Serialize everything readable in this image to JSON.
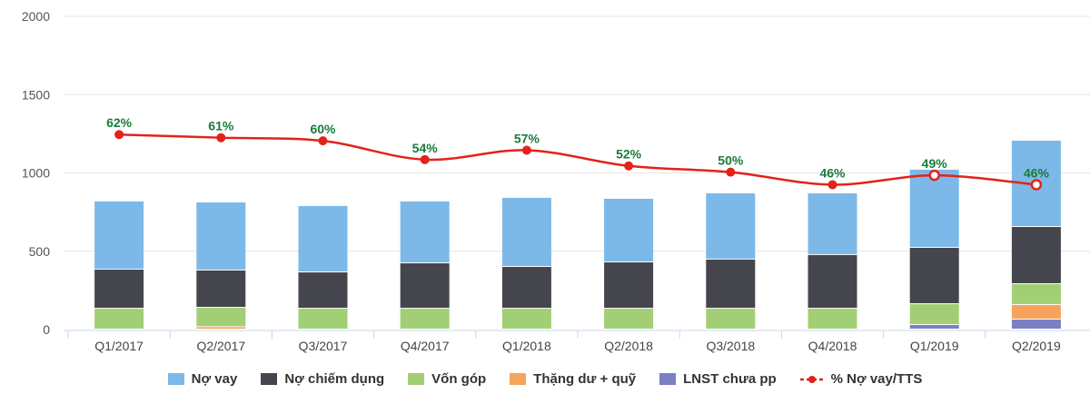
{
  "chart_data": {
    "type": "bar",
    "stacked": true,
    "categories": [
      "Q1/2017",
      "Q2/2017",
      "Q3/2017",
      "Q4/2017",
      "Q1/2018",
      "Q2/2018",
      "Q3/2018",
      "Q4/2018",
      "Q1/2019",
      "Q2/2019"
    ],
    "ylim": [
      0,
      2000
    ],
    "yticks": [
      "0",
      "500",
      "1000",
      "1500",
      "2000"
    ],
    "grid": true,
    "legend_position": "bottom",
    "series": [
      {
        "name": "LNST chưa pp",
        "color": "#7b7fc4",
        "values": [
          0,
          0,
          0,
          0,
          0,
          0,
          0,
          0,
          29,
          64
        ]
      },
      {
        "name": "Thặng dư + quỹ",
        "color": "#f7a35c",
        "values": [
          0,
          15,
          0,
          0,
          0,
          0,
          0,
          0,
          0,
          93
        ]
      },
      {
        "name": "Vốn góp",
        "color": "#a2cf75",
        "values": [
          133,
          124,
          133,
          133,
          133,
          133,
          133,
          133,
          133,
          133
        ]
      },
      {
        "name": "Nợ chiếm dụng",
        "color": "#45464d",
        "values": [
          250,
          238,
          232,
          290,
          267,
          296,
          314,
          343,
          360,
          365
        ]
      },
      {
        "name": "Nợ vay",
        "color": "#7cb9e8",
        "values": [
          435,
          435,
          424,
          395,
          441,
          406,
          423,
          394,
          499,
          551
        ]
      }
    ],
    "line": {
      "name": "% Nợ vay/TTS",
      "color": "#e2231a",
      "label_color": "#1a7a3a",
      "labels": [
        "62%",
        "61%",
        "60%",
        "54%",
        "57%",
        "52%",
        "50%",
        "46%",
        "49%",
        "46%"
      ],
      "values": [
        62,
        61,
        60,
        54,
        57,
        52,
        50,
        46,
        49,
        46
      ],
      "plot_values": [
        1245,
        1225,
        1205,
        1085,
        1145,
        1045,
        1005,
        925,
        985,
        925
      ]
    },
    "legend_order": [
      "Nợ vay",
      "Nợ chiếm dụng",
      "Vốn góp",
      "Thặng dư + quỹ",
      "LNST chưa pp",
      "% Nợ vay/TTS"
    ]
  }
}
